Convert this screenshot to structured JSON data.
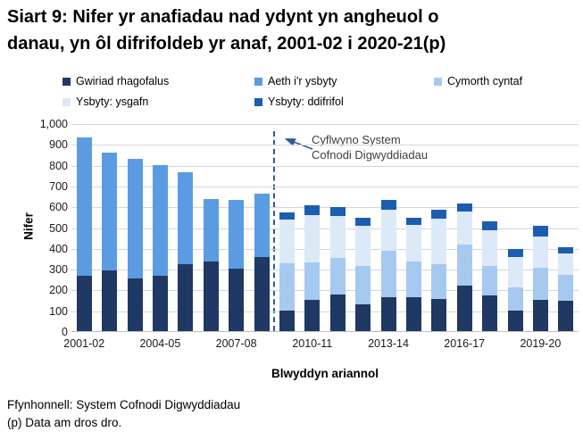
{
  "title": "Siart 9: Nifer yr anafiadau nad ydynt yn angheuol o danau, yn ôl difrifoldeb yr anaf, 2001-02 i 2020-21(p)",
  "title_lines": [
    "Siart 9: Nifer yr anafiadau nad ydynt yn angheuol o",
    "danau, yn ôl difrifoldeb yr anaf, 2001-02 i 2020-21(p)"
  ],
  "footer": {
    "source": "Ffynhonnell: System Cofnodi Digwyddiadau",
    "note": "(p) Data am dros dro."
  },
  "colors": {
    "precautionary": "#1F3864",
    "hospital": "#5B9BE2",
    "first_aid": "#A6C9F0",
    "slight": "#DCE9F8",
    "severe": "#1B5EAF",
    "vline": "#2E5B97",
    "gridline": "#D6D6D6"
  },
  "chart_data": {
    "type": "bar",
    "stacked": true,
    "title": "Siart 9: Nifer yr anafiadau nad ydynt yn angheuol o danau, yn ôl difrifoldeb yr anaf, 2001-02 i 2020-21(p)",
    "xlabel": "Blwyddyn ariannol",
    "ylabel": "Nifer",
    "ylim": [
      0,
      1000
    ],
    "ytick_interval": 100,
    "ytick_labels": [
      "0",
      "100",
      "200",
      "300",
      "400",
      "500",
      "600",
      "700",
      "800",
      "900",
      "1,000"
    ],
    "grid": true,
    "legend_position": "top",
    "categories": [
      "2001-02",
      "2002-03",
      "2003-04",
      "2004-05",
      "2005-06",
      "2006-07",
      "2007-08",
      "2008-09",
      "2009-10",
      "2010-11",
      "2011-12",
      "2012-13",
      "2013-14",
      "2014-15",
      "2015-16",
      "2016-17",
      "2017-18",
      "2018-19",
      "2019-20",
      "2020-21"
    ],
    "xticks": {
      "indices": [
        0,
        3,
        6,
        9,
        12,
        15,
        18
      ],
      "labels": [
        "2001-02",
        "2004-05",
        "2007-08",
        "2010-11",
        "2013-14",
        "2016-17",
        "2019-20"
      ]
    },
    "series": [
      {
        "name": "Gwiriad rhagofalus",
        "color": "#1F3864",
        "values": [
          265,
          290,
          255,
          267,
          320,
          335,
          300,
          355,
          100,
          150,
          175,
          130,
          165,
          165,
          155,
          220,
          170,
          100,
          150,
          145
        ]
      },
      {
        "name": "Aeth i'r ysbyty",
        "color": "#5B9BE2",
        "values": [
          665,
          570,
          575,
          533,
          445,
          300,
          330,
          305,
          0,
          0,
          0,
          0,
          0,
          0,
          0,
          0,
          0,
          0,
          0,
          0
        ]
      },
      {
        "name": "Cymorth cyntaf",
        "color": "#A6C9F0",
        "values": [
          0,
          0,
          0,
          0,
          0,
          0,
          0,
          0,
          225,
          180,
          175,
          185,
          220,
          170,
          165,
          195,
          145,
          110,
          155,
          125
        ]
      },
      {
        "name": "Ysbyty: ysgafn",
        "color": "#DCE9F8",
        "values": [
          0,
          0,
          0,
          0,
          0,
          0,
          0,
          0,
          210,
          230,
          205,
          190,
          200,
          175,
          220,
          160,
          170,
          145,
          150,
          105
        ]
      },
      {
        "name": "Ysbyty: ddifrifol",
        "color": "#1B5EAF",
        "values": [
          0,
          0,
          0,
          0,
          0,
          0,
          0,
          0,
          35,
          45,
          40,
          40,
          45,
          35,
          45,
          40,
          45,
          40,
          50,
          30
        ]
      }
    ],
    "annotation": {
      "lines": [
        "Cyflwyno System",
        "Cofnodi Digwyddiadau"
      ],
      "vline_boundary_index": 8
    }
  }
}
